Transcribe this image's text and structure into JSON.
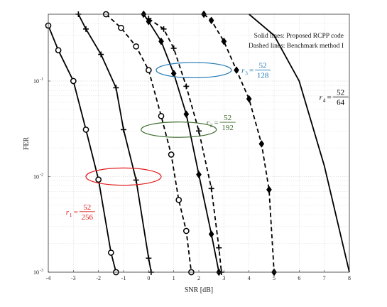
{
  "chart_data": {
    "type": "line",
    "xlabel": "SNR [dB]",
    "ylabel": "FER",
    "xlim": [
      -4,
      8
    ],
    "ylim": [
      0.001,
      0.5
    ],
    "yscale": "log",
    "grid": true,
    "x_ticks": [
      "-4",
      "-3",
      "-2",
      "-1",
      "0",
      "1",
      "2",
      "3",
      "4",
      "5",
      "6",
      "7",
      "8"
    ],
    "y_ticks": [
      {
        "value": 0.1,
        "base": "10",
        "exp": "-1"
      },
      {
        "value": 0.01,
        "base": "10",
        "exp": "-2"
      },
      {
        "value": 0.001,
        "base": "10",
        "exp": "-3"
      }
    ],
    "legend": {
      "position": "top-right",
      "lines": [
        "Solid lines: Proposed RCPP code",
        "Dashed lines: Benchmark method I"
      ]
    },
    "series": [
      {
        "style": "solid",
        "marker": "circle",
        "color": "#000000",
        "points": [
          [
            -4,
            0.38
          ],
          [
            -3.6,
            0.21
          ],
          [
            -3.0,
            0.1
          ],
          [
            -2.5,
            0.031
          ],
          [
            -2.0,
            0.0093
          ],
          [
            -1.5,
            0.0016
          ],
          [
            -1.3,
            0.001
          ]
        ]
      },
      {
        "style": "solid",
        "marker": "plus",
        "color": "#000000",
        "points": [
          [
            -2.8,
            0.5
          ],
          [
            -2.5,
            0.35
          ],
          [
            -1.9,
            0.19
          ],
          [
            -1.3,
            0.085
          ],
          [
            -1.0,
            0.031
          ],
          [
            -0.5,
            0.0092
          ],
          [
            0.0,
            0.0014
          ],
          [
            0.1,
            0.001
          ]
        ]
      },
      {
        "style": "dashed",
        "marker": "circle",
        "color": "#000000",
        "points": [
          [
            -1.7,
            0.5
          ],
          [
            -1.1,
            0.36
          ],
          [
            -0.5,
            0.23
          ],
          [
            0.0,
            0.13
          ],
          [
            0.5,
            0.043
          ],
          [
            0.9,
            0.017
          ],
          [
            1.2,
            0.0057
          ],
          [
            1.5,
            0.0027
          ],
          [
            1.7,
            0.001
          ]
        ]
      },
      {
        "style": "solid",
        "marker": "diamond",
        "color": "#000000",
        "points": [
          [
            -0.2,
            0.5
          ],
          [
            0.0,
            0.42
          ],
          [
            0.5,
            0.26
          ],
          [
            1.0,
            0.12
          ],
          [
            1.5,
            0.045
          ],
          [
            2.0,
            0.0105
          ],
          [
            2.5,
            0.0025
          ],
          [
            2.8,
            0.001
          ]
        ]
      },
      {
        "style": "dashed",
        "marker": "plus",
        "color": "#000000",
        "points": [
          [
            0.0,
            0.45
          ],
          [
            0.6,
            0.35
          ],
          [
            1.0,
            0.22
          ],
          [
            1.5,
            0.088
          ],
          [
            2.0,
            0.03
          ],
          [
            2.5,
            0.0075
          ],
          [
            2.8,
            0.0018
          ],
          [
            2.9,
            0.001
          ]
        ]
      },
      {
        "style": "dashed",
        "marker": "diamond",
        "color": "#000000",
        "points": [
          [
            2.2,
            0.5
          ],
          [
            2.5,
            0.43
          ],
          [
            3.0,
            0.26
          ],
          [
            3.5,
            0.13
          ],
          [
            4.0,
            0.065
          ],
          [
            4.5,
            0.022
          ],
          [
            4.8,
            0.0073
          ],
          [
            5.0,
            0.001
          ]
        ]
      },
      {
        "style": "solid",
        "marker": "none",
        "color": "#000000",
        "points": [
          [
            4.0,
            0.5
          ],
          [
            5.0,
            0.3
          ],
          [
            6.0,
            0.1
          ],
          [
            7.0,
            0.013
          ],
          [
            8.0,
            0.001
          ]
        ]
      }
    ],
    "annotations": [
      {
        "id": "r1",
        "prefix": "r",
        "sub": "1",
        "num": "52",
        "den": "256",
        "color": "#e31a1c",
        "ellipse": {
          "cx": -1.0,
          "cy": 0.01,
          "rx": 1.5,
          "ry_decades": 0.09
        },
        "label_at": [
          -3.3,
          0.0043
        ]
      },
      {
        "id": "r2",
        "prefix": "r",
        "sub": "2",
        "num": "52",
        "den": "192",
        "color": "#3d6b2e",
        "ellipse": {
          "cx": 1.2,
          "cy": 0.031,
          "rx": 1.5,
          "ry_decades": 0.08
        },
        "label_at": [
          2.3,
          0.037
        ]
      },
      {
        "id": "r3",
        "prefix": "r",
        "sub": "3",
        "num": "52",
        "den": "128",
        "color": "#1f77b4",
        "ellipse": {
          "cx": 1.8,
          "cy": 0.13,
          "rx": 1.5,
          "ry_decades": 0.08
        },
        "label_at": [
          3.7,
          0.13
        ]
      },
      {
        "id": "r4",
        "prefix": "r",
        "sub": "4",
        "num": "52",
        "den": "64",
        "color": "#000000",
        "label_at": [
          6.8,
          0.068
        ]
      }
    ]
  }
}
